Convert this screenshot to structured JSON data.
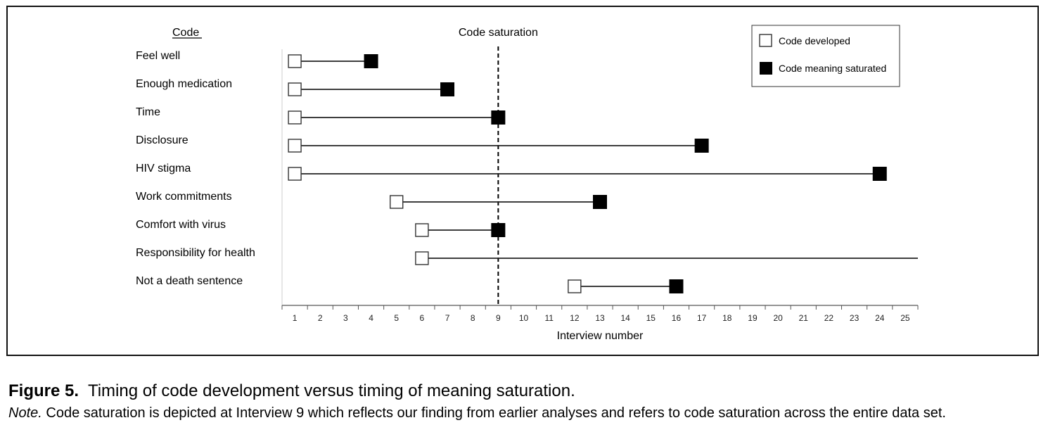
{
  "chart_data": {
    "type": "timeline",
    "code_header": "Code",
    "saturation_label": "Code saturation",
    "saturation_at": 9,
    "xlabel": "Interview number",
    "x_ticks": [
      1,
      2,
      3,
      4,
      5,
      6,
      7,
      8,
      9,
      10,
      11,
      12,
      13,
      14,
      15,
      16,
      17,
      18,
      19,
      20,
      21,
      22,
      23,
      24,
      25
    ],
    "xlim": [
      0.5,
      25.5
    ],
    "legend": [
      {
        "label": "Code developed",
        "marker": "open-square"
      },
      {
        "label": "Code meaning saturated",
        "marker": "filled-square"
      }
    ],
    "legend_position": "top-right",
    "codes": [
      {
        "name": "Feel well",
        "developed": 1,
        "saturated": 4
      },
      {
        "name": "Enough medication",
        "developed": 1,
        "saturated": 7
      },
      {
        "name": "Time",
        "developed": 1,
        "saturated": 9
      },
      {
        "name": "Disclosure",
        "developed": 1,
        "saturated": 17
      },
      {
        "name": "HIV stigma",
        "developed": 1,
        "saturated": 24
      },
      {
        "name": "Work commitments",
        "developed": 5,
        "saturated": 13
      },
      {
        "name": "Comfort with virus",
        "developed": 6,
        "saturated": 9
      },
      {
        "name": "Responsibility for health",
        "developed": 6,
        "saturated": null
      },
      {
        "name": "Not a death sentence",
        "developed": 12,
        "saturated": 16
      }
    ],
    "colors": {
      "line": "#222222",
      "filled": "#000000",
      "open_fill": "#ffffff",
      "axis": "#555555"
    }
  },
  "caption": {
    "label": "Figure 5.",
    "title": "Timing of code development versus timing of meaning saturation.",
    "note_label": "Note.",
    "note_text": "Code saturation is depicted at Interview 9 which reflects our finding from earlier analyses and refers to code saturation across the entire data set."
  }
}
